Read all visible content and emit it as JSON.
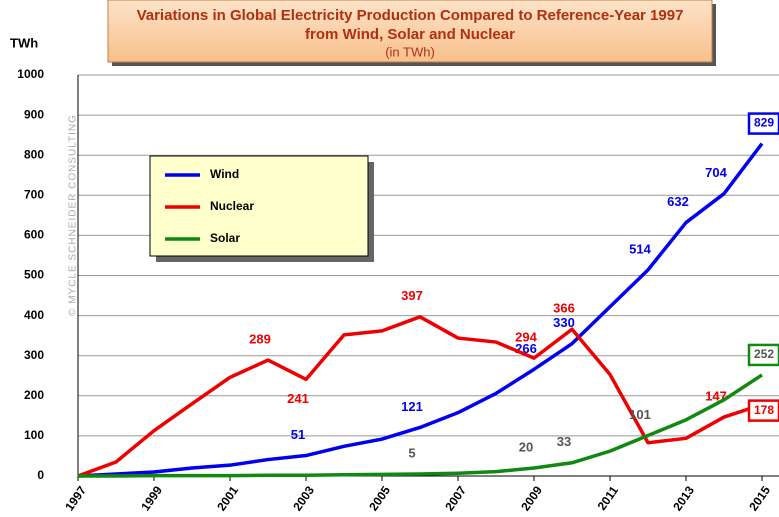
{
  "chart_data": {
    "type": "line",
    "title": [
      "Variations in Global Electricity Production Compared to Reference-Year 1997",
      "from Wind, Solar and Nuclear"
    ],
    "subtitle": "(in TWh)",
    "y_label": "TWh",
    "watermark": "© MYCLE SCHNEIDER CONSULTING",
    "x": [
      1997,
      1998,
      1999,
      2000,
      2001,
      2002,
      2003,
      2004,
      2005,
      2006,
      2007,
      2008,
      2009,
      2010,
      2011,
      2012,
      2013,
      2014,
      2015
    ],
    "xlim": [
      1997,
      2015
    ],
    "xticks": [
      1997,
      1999,
      2001,
      2003,
      2005,
      2007,
      2009,
      2011,
      2013,
      2015
    ],
    "ylim": [
      0,
      1000
    ],
    "yticks": [
      0,
      100,
      200,
      300,
      400,
      500,
      600,
      700,
      800,
      900,
      1000
    ],
    "grid": true,
    "series": [
      {
        "name": "Wind",
        "color": "#0000ee",
        "values": [
          0,
          5,
          10,
          20,
          27,
          41,
          51,
          74,
          92,
          121,
          158,
          206,
          266,
          330,
          422,
          514,
          632,
          704,
          829
        ],
        "value_labels": [
          null,
          null,
          null,
          null,
          null,
          null,
          "51",
          null,
          null,
          "121",
          null,
          null,
          "266",
          "330",
          null,
          "514",
          "632",
          "704",
          "829"
        ]
      },
      {
        "name": "Nuclear",
        "color": "#ee0000",
        "values": [
          0,
          35,
          113,
          180,
          246,
          289,
          241,
          352,
          362,
          397,
          344,
          334,
          294,
          366,
          253,
          83,
          94,
          147,
          178
        ],
        "value_labels": [
          null,
          null,
          null,
          null,
          null,
          "289",
          "241",
          null,
          null,
          "397",
          null,
          null,
          "294",
          "366",
          null,
          null,
          null,
          "147",
          "178"
        ]
      },
      {
        "name": "Solar",
        "color": "#118811",
        "values": [
          0,
          0,
          1,
          1,
          1,
          2,
          2,
          3,
          4,
          5,
          7,
          11,
          20,
          33,
          62,
          101,
          140,
          190,
          252
        ],
        "value_labels": [
          null,
          null,
          null,
          null,
          null,
          null,
          null,
          null,
          null,
          "5",
          null,
          null,
          "20",
          "33",
          null,
          "101",
          null,
          null,
          "252"
        ]
      }
    ]
  }
}
